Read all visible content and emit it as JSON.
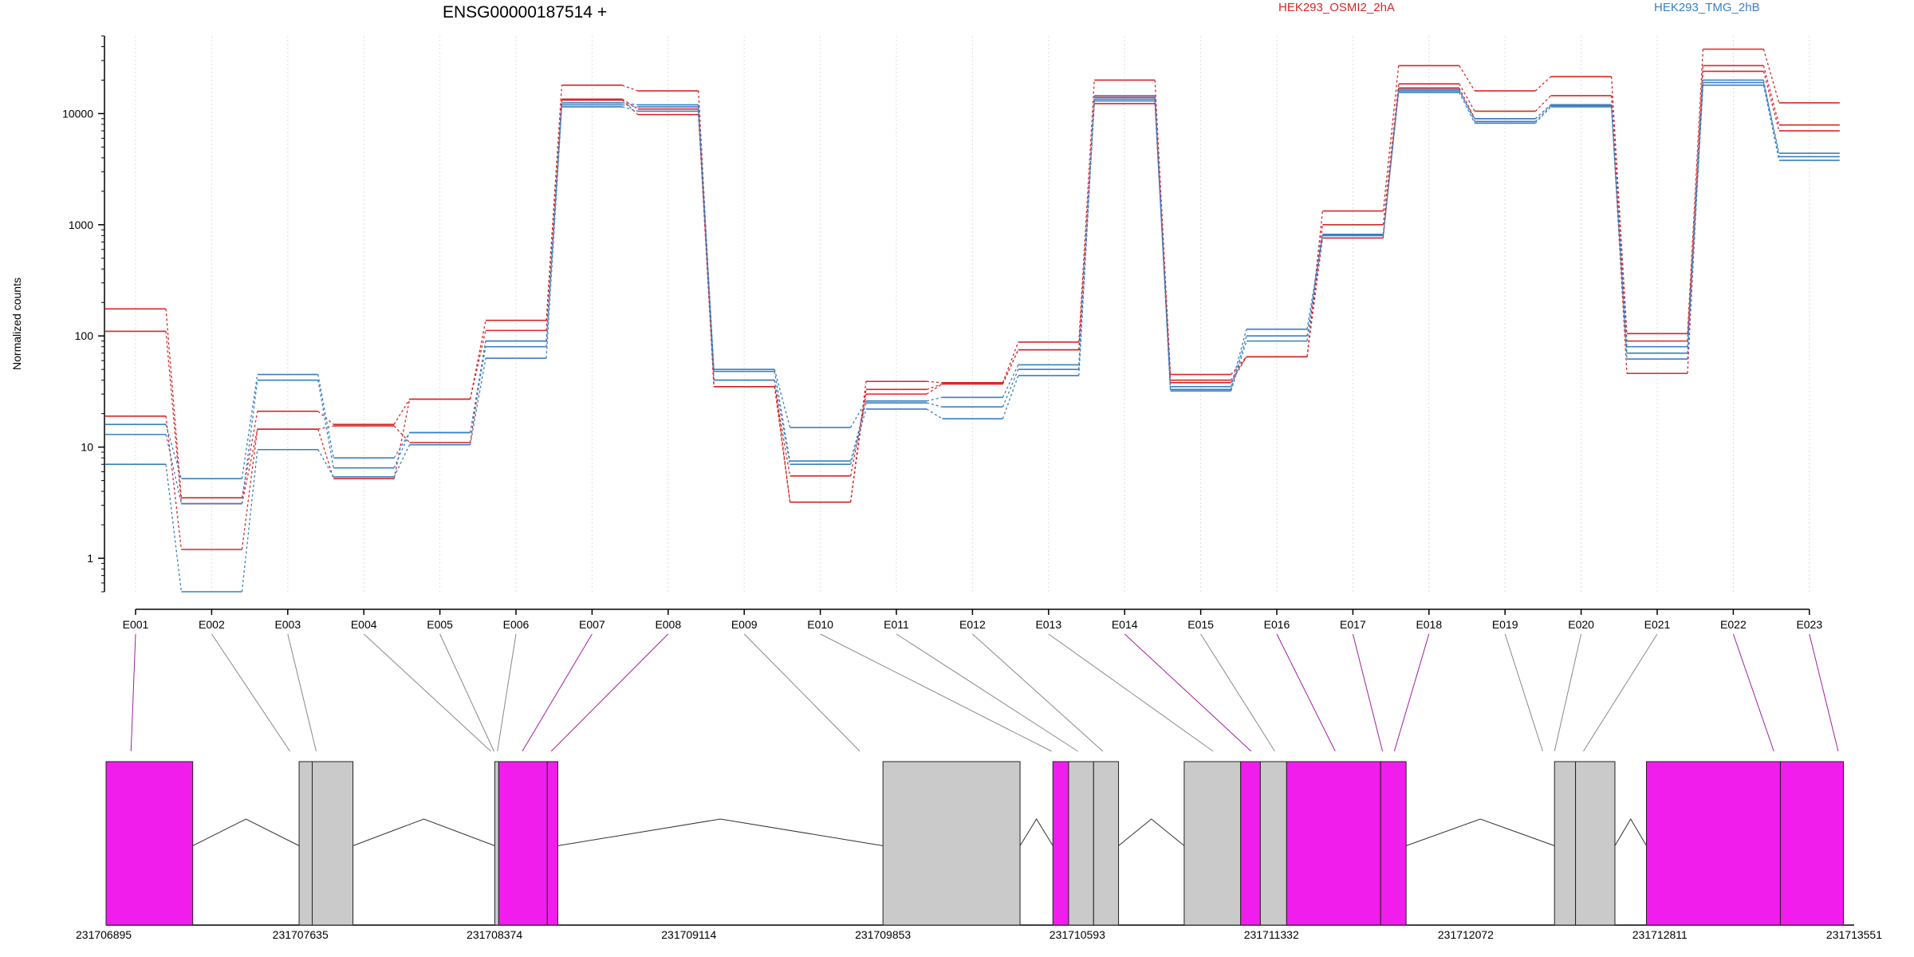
{
  "chart_data": {
    "type": "line",
    "title": "ENSG00000187514 +",
    "ylabel": "Normalized counts",
    "xlabel": "",
    "y_scale": "log10",
    "ylim": [
      0.5,
      50000
    ],
    "y_ticks": [
      1,
      10,
      100,
      1000,
      10000
    ],
    "grid": "vertical dotted lines at each exon",
    "legend": [
      {
        "name": "HEK293_OSMI2_2hA",
        "color": "#d62728",
        "position": "top-center"
      },
      {
        "name": "HEK293_TMG_2hB",
        "color": "#3a7fc1",
        "position": "top-right"
      }
    ],
    "categories": [
      "E001",
      "E002",
      "E003",
      "E004",
      "E005",
      "E006",
      "E007",
      "E008",
      "E009",
      "E010",
      "E011",
      "E012",
      "E013",
      "E014",
      "E015",
      "E016",
      "E017",
      "E018",
      "E019",
      "E020",
      "E021",
      "E022",
      "E023"
    ],
    "series": [
      {
        "group": "HEK293_OSMI2_2hA",
        "color": "#d62728",
        "values": [
          175,
          3.5,
          21,
          16,
          27,
          138,
          18000,
          16000,
          40,
          3.2,
          39,
          38,
          88,
          20000,
          45,
          65,
          1330,
          27000,
          16000,
          21500,
          105,
          38000,
          12500
        ]
      },
      {
        "group": "HEK293_OSMI2_2hA",
        "color": "#d62728",
        "values": [
          110,
          3.1,
          14.5,
          5.2,
          27,
          112,
          13200,
          9800,
          35,
          3.2,
          33,
          37,
          75,
          12300,
          38,
          65,
          1000,
          18500,
          10500,
          14500,
          90,
          27000,
          7900
        ]
      },
      {
        "group": "HEK293_OSMI2_2hA",
        "color": "#d62728",
        "values": [
          19,
          1.2,
          14.5,
          15.5,
          11,
          90,
          13500,
          11000,
          35,
          5.5,
          30,
          37,
          75,
          14000,
          40,
          65,
          760,
          17000,
          9000,
          12000,
          46,
          24000,
          7000
        ]
      },
      {
        "group": "HEK293_TMG_2hB",
        "color": "#3a7fc1",
        "values": [
          16,
          5.2,
          45,
          8,
          13.5,
          80,
          12500,
          12000,
          50,
          15,
          26,
          28,
          55,
          14500,
          35,
          115,
          820,
          16000,
          9000,
          12000,
          80,
          19000,
          4400
        ]
      },
      {
        "group": "HEK293_TMG_2hB",
        "color": "#3a7fc1",
        "values": [
          13,
          3.1,
          40,
          6.5,
          13.5,
          90,
          12000,
          11500,
          48,
          7.5,
          25,
          23,
          50,
          13500,
          33,
          100,
          800,
          16500,
          8500,
          11800,
          70,
          20000,
          4100
        ]
      },
      {
        "group": "HEK293_TMG_2hB",
        "color": "#3a7fc1",
        "values": [
          7,
          0.5,
          9.5,
          5.4,
          10.5,
          63,
          11500,
          10500,
          40,
          7,
          22,
          18,
          44,
          13000,
          32,
          90,
          800,
          15500,
          8200,
          11500,
          62,
          18000,
          3800
        ]
      }
    ],
    "gene_model": {
      "coordinates": [
        "231706895",
        "231707635",
        "231708374",
        "231709114",
        "231709853",
        "231710593",
        "231711332",
        "231712072",
        "231712811",
        "231713551"
      ],
      "exon_blocks_gp": [
        [
          231706895,
          231707225
        ],
        [
          231707630,
          231707680
        ],
        [
          231707680,
          231707835
        ],
        [
          231708375,
          231708390
        ],
        [
          231708390,
          231708575
        ],
        [
          231708575,
          231708615
        ],
        [
          231709853,
          231710375
        ],
        [
          231710500,
          231710560
        ],
        [
          231710560,
          231710655
        ],
        [
          231710655,
          231710750
        ],
        [
          231711000,
          231711215
        ],
        [
          231711215,
          231711290
        ],
        [
          231711290,
          231711390
        ],
        [
          231711390,
          231711748
        ],
        [
          231711748,
          231711845
        ],
        [
          231712410,
          231712490
        ],
        [
          231712490,
          231712640
        ],
        [
          231712760,
          231713270
        ],
        [
          231713270,
          231713510
        ]
      ],
      "exon_block_colors": [
        "magenta",
        "gray",
        "gray",
        "gray",
        "magenta",
        "magenta",
        "gray",
        "magenta",
        "gray",
        "gray",
        "gray",
        "magenta",
        "gray",
        "magenta",
        "magenta",
        "gray",
        "gray",
        "magenta",
        "magenta"
      ],
      "exon_block_highlight": [
        true,
        false,
        false,
        false,
        true,
        true,
        false,
        true,
        false,
        false,
        false,
        true,
        false,
        true,
        true,
        false,
        false,
        true,
        true
      ],
      "exon_map_gp": [
        231706990,
        231707595,
        231707695,
        231708360,
        231708372,
        231708385,
        231708480,
        231708590,
        231709765,
        231710495,
        231710595,
        231710690,
        231711110,
        231711255,
        231711345,
        231711575,
        231711755,
        231711800,
        231712365,
        231712410,
        231712520,
        231713245,
        231713490
      ]
    }
  }
}
